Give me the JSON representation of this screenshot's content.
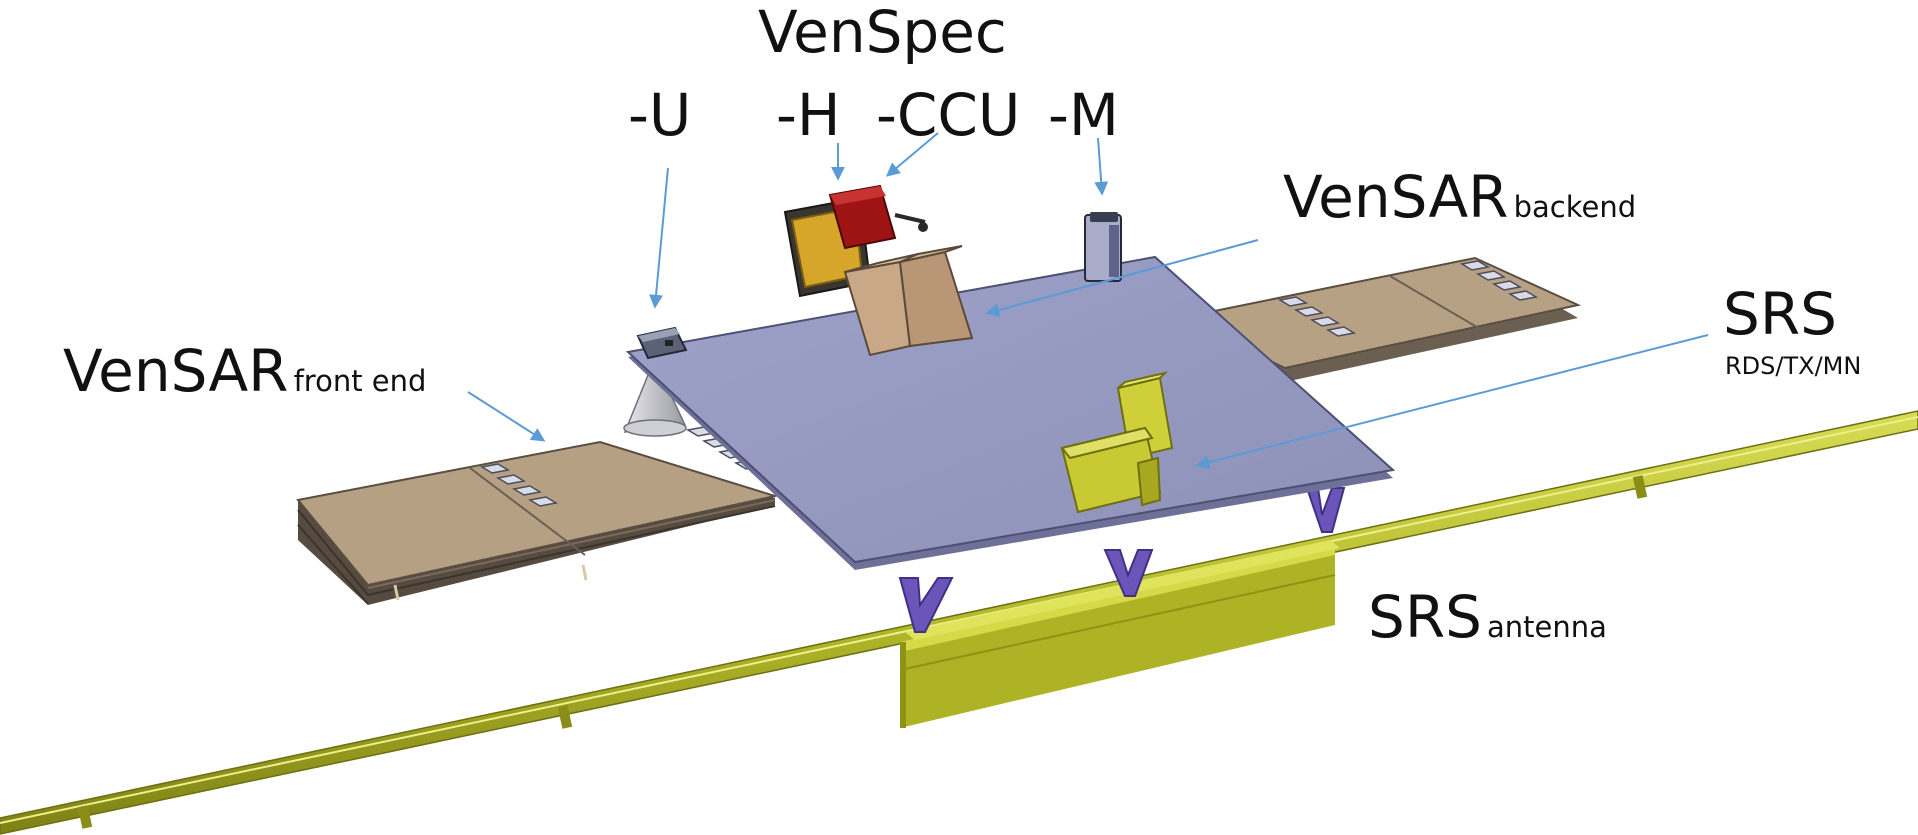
{
  "labels": {
    "venspec": "VenSpec",
    "venspec_u": "-U",
    "venspec_h": "-H",
    "venspec_ccu": "-CCU",
    "venspec_m": "-M",
    "vensar_backend_main": "VenSAR",
    "vensar_backend_sub": "backend",
    "vensar_frontend_main": "VenSAR",
    "vensar_frontend_sub": "front end",
    "srs_main": "SRS",
    "srs_sub": "RDS/TX/MN",
    "srs_antenna_main": "SRS",
    "srs_antenna_sub": "antenna"
  },
  "colors": {
    "arrow": "#5b9bd5",
    "deck": "#9a9ec2",
    "panel": "#b49d82",
    "boom": "#b2b82a",
    "srs_box": "#d8d64a",
    "strut": "#6a55b8",
    "venspec_h_box": "#a01818",
    "venspec_frame": "#c89a20"
  }
}
